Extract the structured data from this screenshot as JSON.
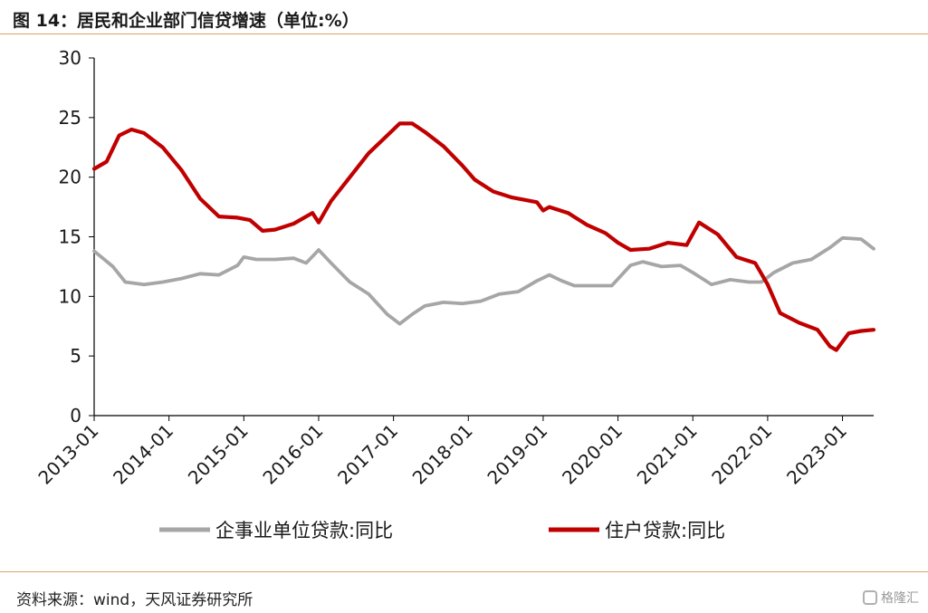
{
  "header": {
    "title": "图 14：居民和企业部门信贷增速（单位:%）"
  },
  "footer": {
    "source": "资料来源：wind，天风证券研究所",
    "watermark": "格隆汇"
  },
  "chart_data": {
    "type": "line",
    "title": "图 14：居民和企业部门信贷增速（单位:%）",
    "xlabel": "",
    "ylabel": "",
    "ylim": [
      0,
      30
    ],
    "yticks": [
      "0",
      "5",
      "10",
      "15",
      "20",
      "25",
      "30"
    ],
    "xticks": [
      "2013-01",
      "2014-01",
      "2015-01",
      "2016-01",
      "2017-01",
      "2018-01",
      "2019-01",
      "2020-01",
      "2021-01",
      "2022-01",
      "2023-01"
    ],
    "grid": false,
    "legend_position": "bottom",
    "x_range": [
      "2013-01",
      "2023-06"
    ],
    "series": [
      {
        "name": "企事业单位贷款:同比",
        "color": "#a6a6a6",
        "points": [
          [
            "2013-01",
            13.8
          ],
          [
            "2013-04",
            12.5
          ],
          [
            "2013-06",
            11.2
          ],
          [
            "2013-09",
            11.0
          ],
          [
            "2013-12",
            11.2
          ],
          [
            "2014-03",
            11.5
          ],
          [
            "2014-06",
            11.9
          ],
          [
            "2014-09",
            11.8
          ],
          [
            "2014-12",
            12.6
          ],
          [
            "2015-01",
            13.3
          ],
          [
            "2015-03",
            13.1
          ],
          [
            "2015-06",
            13.1
          ],
          [
            "2015-09",
            13.2
          ],
          [
            "2015-11",
            12.8
          ],
          [
            "2016-01",
            13.9
          ],
          [
            "2016-03",
            12.8
          ],
          [
            "2016-06",
            11.2
          ],
          [
            "2016-09",
            10.2
          ],
          [
            "2016-12",
            8.5
          ],
          [
            "2017-02",
            7.7
          ],
          [
            "2017-04",
            8.5
          ],
          [
            "2017-06",
            9.2
          ],
          [
            "2017-09",
            9.5
          ],
          [
            "2017-12",
            9.4
          ],
          [
            "2018-03",
            9.6
          ],
          [
            "2018-06",
            10.2
          ],
          [
            "2018-09",
            10.4
          ],
          [
            "2018-12",
            11.3
          ],
          [
            "2019-02",
            11.8
          ],
          [
            "2019-04",
            11.3
          ],
          [
            "2019-06",
            10.9
          ],
          [
            "2019-09",
            10.9
          ],
          [
            "2019-12",
            10.9
          ],
          [
            "2020-03",
            12.6
          ],
          [
            "2020-05",
            12.9
          ],
          [
            "2020-08",
            12.5
          ],
          [
            "2020-11",
            12.6
          ],
          [
            "2021-01",
            12.0
          ],
          [
            "2021-04",
            11.0
          ],
          [
            "2021-07",
            11.4
          ],
          [
            "2021-10",
            11.2
          ],
          [
            "2021-12",
            11.2
          ],
          [
            "2022-02",
            12.0
          ],
          [
            "2022-05",
            12.8
          ],
          [
            "2022-08",
            13.1
          ],
          [
            "2022-11",
            14.1
          ],
          [
            "2023-01",
            14.9
          ],
          [
            "2023-04",
            14.8
          ],
          [
            "2023-06",
            14.0
          ]
        ]
      },
      {
        "name": "住户贷款:同比",
        "color": "#c00000",
        "points": [
          [
            "2013-01",
            20.7
          ],
          [
            "2013-03",
            21.3
          ],
          [
            "2013-05",
            23.5
          ],
          [
            "2013-07",
            24.0
          ],
          [
            "2013-09",
            23.7
          ],
          [
            "2013-12",
            22.5
          ],
          [
            "2014-03",
            20.6
          ],
          [
            "2014-06",
            18.2
          ],
          [
            "2014-09",
            16.7
          ],
          [
            "2014-12",
            16.6
          ],
          [
            "2015-02",
            16.4
          ],
          [
            "2015-04",
            15.5
          ],
          [
            "2015-06",
            15.6
          ],
          [
            "2015-09",
            16.1
          ],
          [
            "2015-12",
            17.0
          ],
          [
            "2016-01",
            16.2
          ],
          [
            "2016-03",
            18.0
          ],
          [
            "2016-06",
            20.0
          ],
          [
            "2016-09",
            22.0
          ],
          [
            "2016-12",
            23.5
          ],
          [
            "2017-02",
            24.5
          ],
          [
            "2017-04",
            24.5
          ],
          [
            "2017-06",
            23.8
          ],
          [
            "2017-09",
            22.6
          ],
          [
            "2017-12",
            21.0
          ],
          [
            "2018-02",
            19.8
          ],
          [
            "2018-05",
            18.8
          ],
          [
            "2018-08",
            18.3
          ],
          [
            "2018-12",
            17.9
          ],
          [
            "2019-01",
            17.2
          ],
          [
            "2019-02",
            17.5
          ],
          [
            "2019-05",
            17.0
          ],
          [
            "2019-08",
            16.0
          ],
          [
            "2019-11",
            15.3
          ],
          [
            "2020-01",
            14.5
          ],
          [
            "2020-03",
            13.9
          ],
          [
            "2020-06",
            14.0
          ],
          [
            "2020-09",
            14.5
          ],
          [
            "2020-12",
            14.3
          ],
          [
            "2021-02",
            16.2
          ],
          [
            "2021-05",
            15.2
          ],
          [
            "2021-08",
            13.3
          ],
          [
            "2021-11",
            12.8
          ],
          [
            "2022-01",
            11.0
          ],
          [
            "2022-03",
            8.6
          ],
          [
            "2022-06",
            7.8
          ],
          [
            "2022-09",
            7.2
          ],
          [
            "2022-11",
            5.8
          ],
          [
            "2022-12",
            5.5
          ],
          [
            "2023-02",
            6.9
          ],
          [
            "2023-04",
            7.1
          ],
          [
            "2023-06",
            7.2
          ]
        ]
      }
    ]
  }
}
